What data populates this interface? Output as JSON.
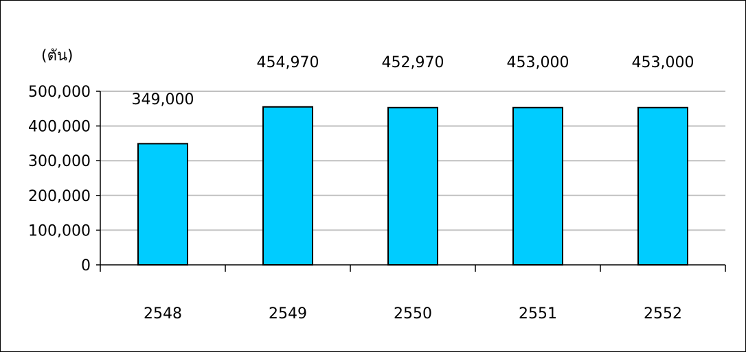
{
  "chart_data": {
    "type": "bar",
    "unit_label": "(ตัน)",
    "categories": [
      "2548",
      "2549",
      "2550",
      "2551",
      "2552"
    ],
    "values": [
      349000,
      454970,
      452970,
      453000,
      453000
    ],
    "data_labels": [
      "349,000",
      "454,970",
      "452,970",
      "453,000",
      "453,000"
    ],
    "y_ticks": [
      0,
      100000,
      200000,
      300000,
      400000,
      500000
    ],
    "y_tick_labels": [
      "0",
      "100,000",
      "200,000",
      "300,000",
      "400,000",
      "500,000"
    ],
    "ylim": [
      0,
      500000
    ],
    "grid": true,
    "bar_color": "#00CCFF",
    "bar_edge_color": "#000000",
    "grid_color": "#C0C0C0"
  }
}
